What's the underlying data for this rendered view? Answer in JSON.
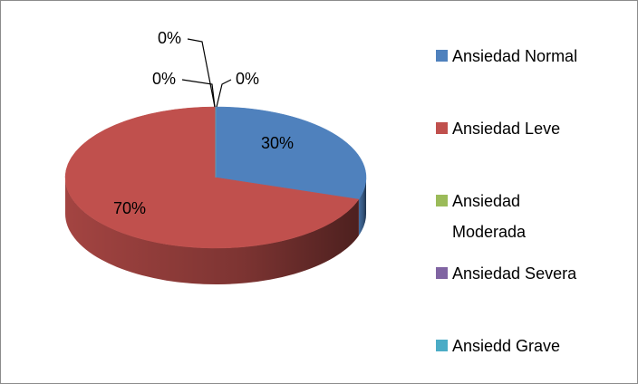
{
  "chart_data": {
    "type": "pie",
    "categories": [
      "Ansiedad Normal",
      "Ansiedad Leve",
      "Ansiedad Moderada",
      "Ansiedad Severa",
      "Ansiedd Grave"
    ],
    "values": [
      30,
      70,
      0,
      0,
      0
    ],
    "value_labels": [
      "30%",
      "70%",
      "0%",
      "0%",
      "0%"
    ],
    "colors": [
      "#4f81bd",
      "#c0504d",
      "#9bbb59",
      "#8064a2",
      "#4bacc6"
    ],
    "legend": "right"
  }
}
